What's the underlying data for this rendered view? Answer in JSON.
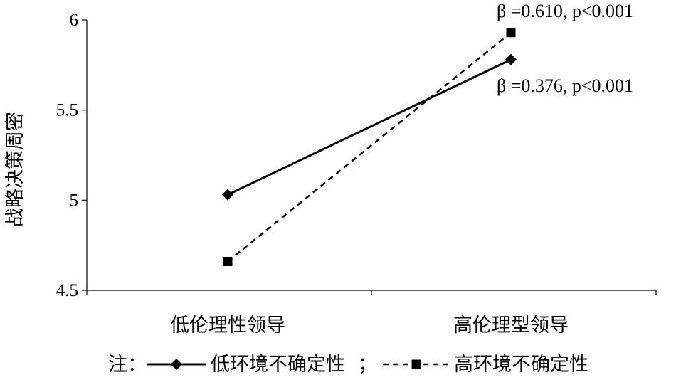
{
  "chart_data": {
    "type": "line",
    "categories": [
      "低伦理性领导",
      "高伦理型领导"
    ],
    "series": [
      {
        "name": "低环境不确定性",
        "values": [
          5.03,
          5.78
        ],
        "line_style": "solid",
        "marker": "diamond",
        "color": "#000000"
      },
      {
        "name": "高环境不确定性",
        "values": [
          4.66,
          5.93
        ],
        "line_style": "dashed",
        "marker": "square",
        "color": "#000000"
      }
    ],
    "title": "",
    "xlabel": "",
    "ylabel": "战略决策周密",
    "ylim": [
      4.5,
      6
    ],
    "yticks": [
      "4.5",
      "5",
      "5.5",
      "6"
    ],
    "ytick_values": [
      4.5,
      5,
      5.5,
      6
    ],
    "grid": false,
    "annotations": [
      {
        "text": "β =0.610,  p<0.001",
        "series": "高环境不确定性"
      },
      {
        "text": "β =0.376,  p<0.001",
        "series": "低环境不确定性"
      }
    ],
    "legend": {
      "placement": "bottom",
      "prefix": "注：",
      "separator": "；",
      "items": [
        "低环境不确定性",
        "高环境不确定性"
      ]
    }
  }
}
